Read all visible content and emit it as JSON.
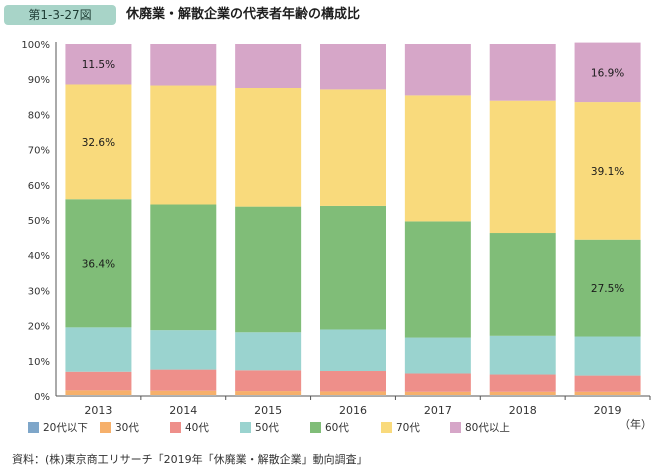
{
  "figure_label": "第1-3-27図",
  "title": "休廃業・解散企業の代表者年齢の構成比",
  "source": "資料：(株)東京商工リサーチ「2019年「休廃業・解散企業」動向調査」",
  "colors": {
    "20s_and_under": "#7ea6c9",
    "30s": "#f6b06b",
    "40s": "#ee8f8a",
    "50s": "#9ad3cf",
    "60s": "#80bd78",
    "70s": "#f9da7c",
    "80s_and_over": "#d6a6c8"
  },
  "chart_data": {
    "type": "bar",
    "stacked": true,
    "percent": true,
    "categories": [
      "2013",
      "2014",
      "2015",
      "2016",
      "2017",
      "2018",
      "2019"
    ],
    "xunit": "（年）",
    "ylim": [
      0,
      100
    ],
    "yticks": [
      "0%",
      "10%",
      "20%",
      "30%",
      "40%",
      "50%",
      "60%",
      "70%",
      "80%",
      "90%",
      "100%"
    ],
    "grid": false,
    "legend_position": "bottom",
    "series": [
      {
        "name": "20代以下",
        "color_key": "20s_and_under",
        "values": [
          0.2,
          0.2,
          0.2,
          0.2,
          0.2,
          0.2,
          0.2
        ]
      },
      {
        "name": "30代",
        "color_key": "30s",
        "values": [
          1.4,
          1.3,
          1.2,
          1.1,
          1.0,
          1.0,
          1.0
        ]
      },
      {
        "name": "40代",
        "color_key": "40s",
        "values": [
          5.3,
          6.0,
          5.9,
          5.8,
          5.2,
          4.9,
          4.6
        ]
      },
      {
        "name": "50代",
        "color_key": "50s",
        "values": [
          12.6,
          11.2,
          10.8,
          11.8,
          10.2,
          11.0,
          11.1
        ]
      },
      {
        "name": "60代",
        "color_key": "60s",
        "values": [
          36.4,
          35.7,
          35.7,
          35.1,
          33.0,
          29.2,
          27.5
        ]
      },
      {
        "name": "70代",
        "color_key": "70s",
        "values": [
          32.6,
          33.8,
          33.7,
          33.1,
          35.8,
          37.6,
          39.1
        ]
      },
      {
        "name": "80代以上",
        "color_key": "80s_and_over",
        "values": [
          11.5,
          11.8,
          12.5,
          12.9,
          14.6,
          16.1,
          16.9
        ]
      }
    ],
    "data_labels": [
      {
        "category": "2013",
        "series": "80代以上",
        "text": "11.5%"
      },
      {
        "category": "2013",
        "series": "70代",
        "text": "32.6%"
      },
      {
        "category": "2013",
        "series": "60代",
        "text": "36.4%"
      },
      {
        "category": "2019",
        "series": "80代以上",
        "text": "16.9%"
      },
      {
        "category": "2019",
        "series": "70代",
        "text": "39.1%"
      },
      {
        "category": "2019",
        "series": "60代",
        "text": "27.5%"
      }
    ]
  }
}
